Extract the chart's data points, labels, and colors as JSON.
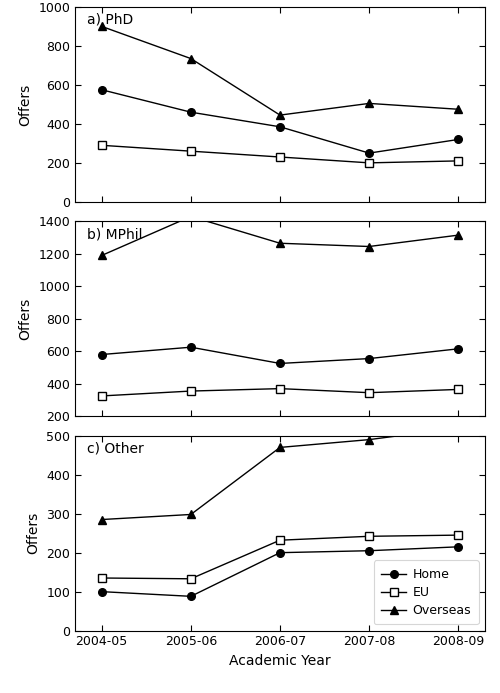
{
  "years": [
    "2004-05",
    "2005-06",
    "2006-07",
    "2007-08",
    "2008-09"
  ],
  "phd": {
    "home": [
      575,
      460,
      385,
      250,
      320
    ],
    "eu": [
      290,
      260,
      230,
      200,
      210
    ],
    "overseas": [
      900,
      735,
      445,
      505,
      475
    ]
  },
  "mphil": {
    "home": [
      580,
      625,
      525,
      555,
      615
    ],
    "eu": [
      325,
      355,
      370,
      345,
      365
    ],
    "overseas": [
      1190,
      1430,
      1265,
      1245,
      1315
    ]
  },
  "other": {
    "home": [
      100,
      88,
      200,
      205,
      215
    ],
    "eu": [
      135,
      133,
      232,
      242,
      245
    ],
    "overseas": [
      285,
      298,
      470,
      490,
      520
    ]
  },
  "ylim_phd": [
    0,
    1000
  ],
  "ylim_mphil": [
    200,
    1400
  ],
  "ylim_other": [
    0,
    500
  ],
  "yticks_phd": [
    0,
    200,
    400,
    600,
    800,
    1000
  ],
  "yticks_mphil": [
    200,
    400,
    600,
    800,
    1000,
    1200,
    1400
  ],
  "yticks_other": [
    0,
    100,
    200,
    300,
    400,
    500
  ],
  "xlabel": "Academic Year",
  "ylabel": "Offers",
  "panel_labels": [
    "a) PhD",
    "b) MPhil",
    "c) Other"
  ],
  "legend_labels": [
    "Home",
    "EU",
    "Overseas"
  ],
  "color": "#000000",
  "marker_home": "o",
  "marker_eu": "s",
  "marker_overseas": "^"
}
